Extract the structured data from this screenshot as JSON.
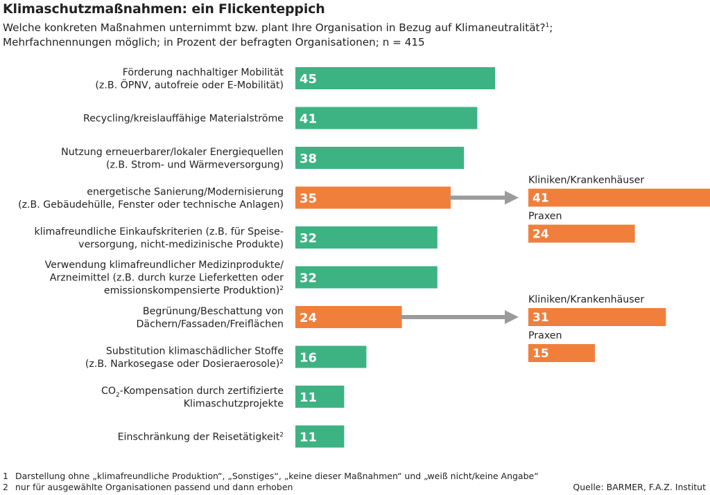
{
  "title": "Klimaschutzmaßnahmen: ein Flickenteppich",
  "subtitle_line1": "Welche konkreten Maßnahmen unternimmt bzw. plant Ihre Organisation in Bezug auf Klimaneutralität?",
  "subtitle_line1_sup": "1",
  "subtitle_line1_end": ";",
  "subtitle_line2": "Mehrfachnennungen möglich; in Prozent der befragten Organisationen; n = 415",
  "colors": {
    "green": "#3db384",
    "orange": "#f07f3c",
    "arrow": "#9b9b9b"
  },
  "chart_data": {
    "type": "bar",
    "orientation": "horizontal",
    "xlim": [
      0,
      50
    ],
    "categories": [
      {
        "lines": [
          "Förderung nachhaltiger Mobilität",
          "(z.B. ÖPNV, autofreie oder E-Mobilität)"
        ],
        "value": 45,
        "color": "green"
      },
      {
        "lines": [
          "Recycling/kreislauffähige Materialströme"
        ],
        "value": 41,
        "color": "green"
      },
      {
        "lines": [
          "Nutzung erneuerbarer/lokaler Energiequellen",
          "(z.B. Strom- und Wärmeversorgung)"
        ],
        "value": 38,
        "color": "green"
      },
      {
        "lines": [
          "energetische Sanierung/Modernisierung",
          "(z.B. Gebäudehülle, Fenster oder technische Anlagen)"
        ],
        "value": 35,
        "color": "orange",
        "breakdown": [
          {
            "label": "Kliniken/Krankenhäuser",
            "value": 41
          },
          {
            "label": "Praxen",
            "value": 24
          }
        ]
      },
      {
        "lines": [
          "klimafreundliche Einkaufskriterien (z.B. für Speise-",
          "versorgung, nicht-medizinische Produkte)"
        ],
        "value": 32,
        "color": "green"
      },
      {
        "lines": [
          "Verwendung klimafreundlicher Medizinprodukte/",
          "Arzneimittel (z.B. durch kurze Lieferketten oder",
          "emissionskompensierte Produktion)²"
        ],
        "value": 32,
        "color": "green"
      },
      {
        "lines": [
          "Begrünung/Beschattung von",
          "Dächern/Fassaden/Freiflächen"
        ],
        "value": 24,
        "color": "orange",
        "breakdown": [
          {
            "label": "Kliniken/Krankenhäuser",
            "value": 31
          },
          {
            "label": "Praxen",
            "value": 15
          }
        ]
      },
      {
        "lines": [
          "Substitution klimaschädlicher Stoffe",
          "(z.B. Narkosegase oder Dosieraerosole)²"
        ],
        "value": 16,
        "color": "green"
      },
      {
        "lines": [
          "CO₂-Kompensation durch zertifizierte",
          "Klimaschutzprojekte"
        ],
        "value": 11,
        "color": "green"
      },
      {
        "lines": [
          "Einschränkung der Reisetätigkeit²"
        ],
        "value": 11,
        "color": "green"
      }
    ]
  },
  "footnotes": [
    {
      "num": "1",
      "text": "Darstellung ohne „klimafreundliche Produktion“, „Sonstiges“, „keine dieser Maßnahmen“ und „weiß nicht/keine Angabe“"
    },
    {
      "num": "2",
      "text": "nur für ausgewählte Organisationen passend und dann erhoben"
    }
  ],
  "source": "Quelle: BARMER, F.A.Z. Institut"
}
